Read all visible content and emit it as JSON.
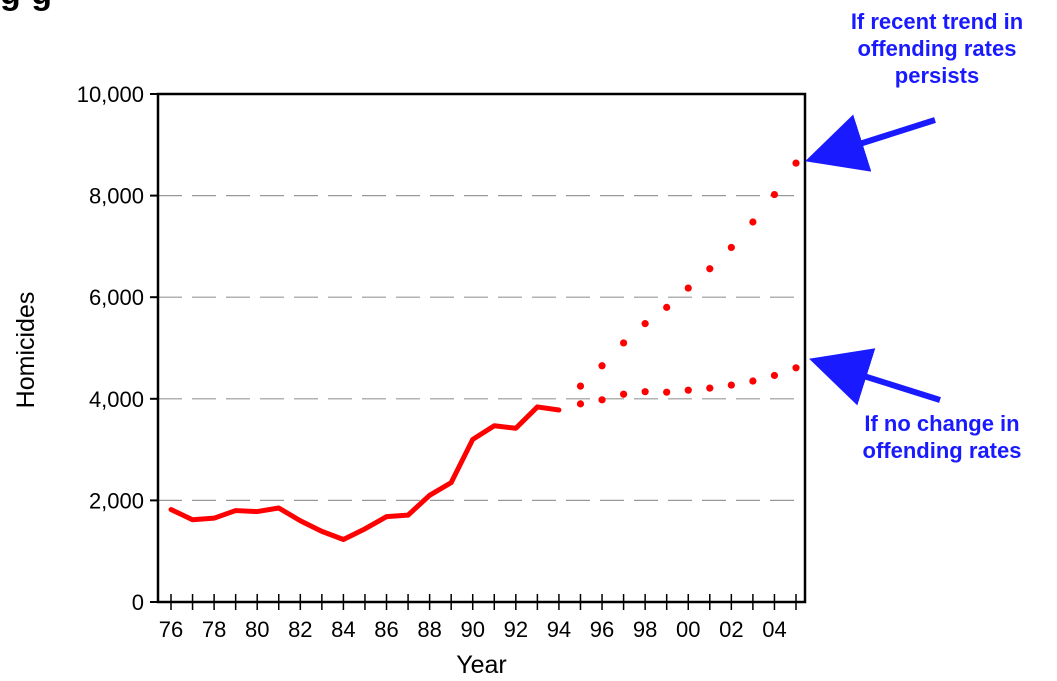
{
  "header": {
    "title_fragment": "g                                                              g"
  },
  "annotations": {
    "top": {
      "lines": [
        "If recent trend in",
        "offending rates",
        "persists"
      ]
    },
    "bottom": {
      "lines": [
        "If no change in",
        "offending rates"
      ]
    },
    "color": "#1a1aff"
  },
  "chart_data": {
    "type": "line",
    "xlabel": "Year",
    "ylabel": "Homicides",
    "ylim": [
      0,
      10000
    ],
    "yticks": [
      0,
      2000,
      4000,
      6000,
      8000,
      10000
    ],
    "ytick_labels": [
      "0",
      "2,000",
      "4,000",
      "6,000",
      "8,000",
      "10,000"
    ],
    "xlim": [
      1976,
      2005
    ],
    "xtick_labels": [
      "76",
      "78",
      "80",
      "82",
      "84",
      "86",
      "88",
      "90",
      "92",
      "94",
      "96",
      "98",
      "00",
      "02",
      "04"
    ],
    "xtick_years": [
      1976,
      1978,
      1980,
      1982,
      1984,
      1986,
      1988,
      1990,
      1992,
      1994,
      1996,
      1998,
      2000,
      2002,
      2004
    ],
    "grid": "horizontal-dashed",
    "series": [
      {
        "style": "solid",
        "color": "#ff0000",
        "x": [
          1976,
          1977,
          1978,
          1979,
          1980,
          1981,
          1982,
          1983,
          1984,
          1985,
          1986,
          1987,
          1988,
          1989,
          1990,
          1991,
          1992,
          1993,
          1994
        ],
        "values": [
          1820,
          1620,
          1650,
          1800,
          1780,
          1850,
          1600,
          1390,
          1230,
          1440,
          1680,
          1710,
          2100,
          2350,
          3200,
          3470,
          3420,
          3840,
          3780
        ]
      },
      {
        "style": "dotted",
        "color": "#ff0000",
        "x": [
          1995,
          1996,
          1997,
          1998,
          1999,
          2000,
          2001,
          2002,
          2003,
          2004,
          2005
        ],
        "values": [
          4250,
          4650,
          5100,
          5480,
          5800,
          6180,
          6560,
          6980,
          7480,
          8020,
          8640
        ]
      },
      {
        "style": "dotted",
        "color": "#ff0000",
        "x": [
          1995,
          1996,
          1997,
          1998,
          1999,
          2000,
          2001,
          2002,
          2003,
          2004,
          2005
        ],
        "values": [
          3900,
          3980,
          4090,
          4140,
          4130,
          4170,
          4210,
          4270,
          4350,
          4460,
          4610
        ]
      }
    ]
  }
}
